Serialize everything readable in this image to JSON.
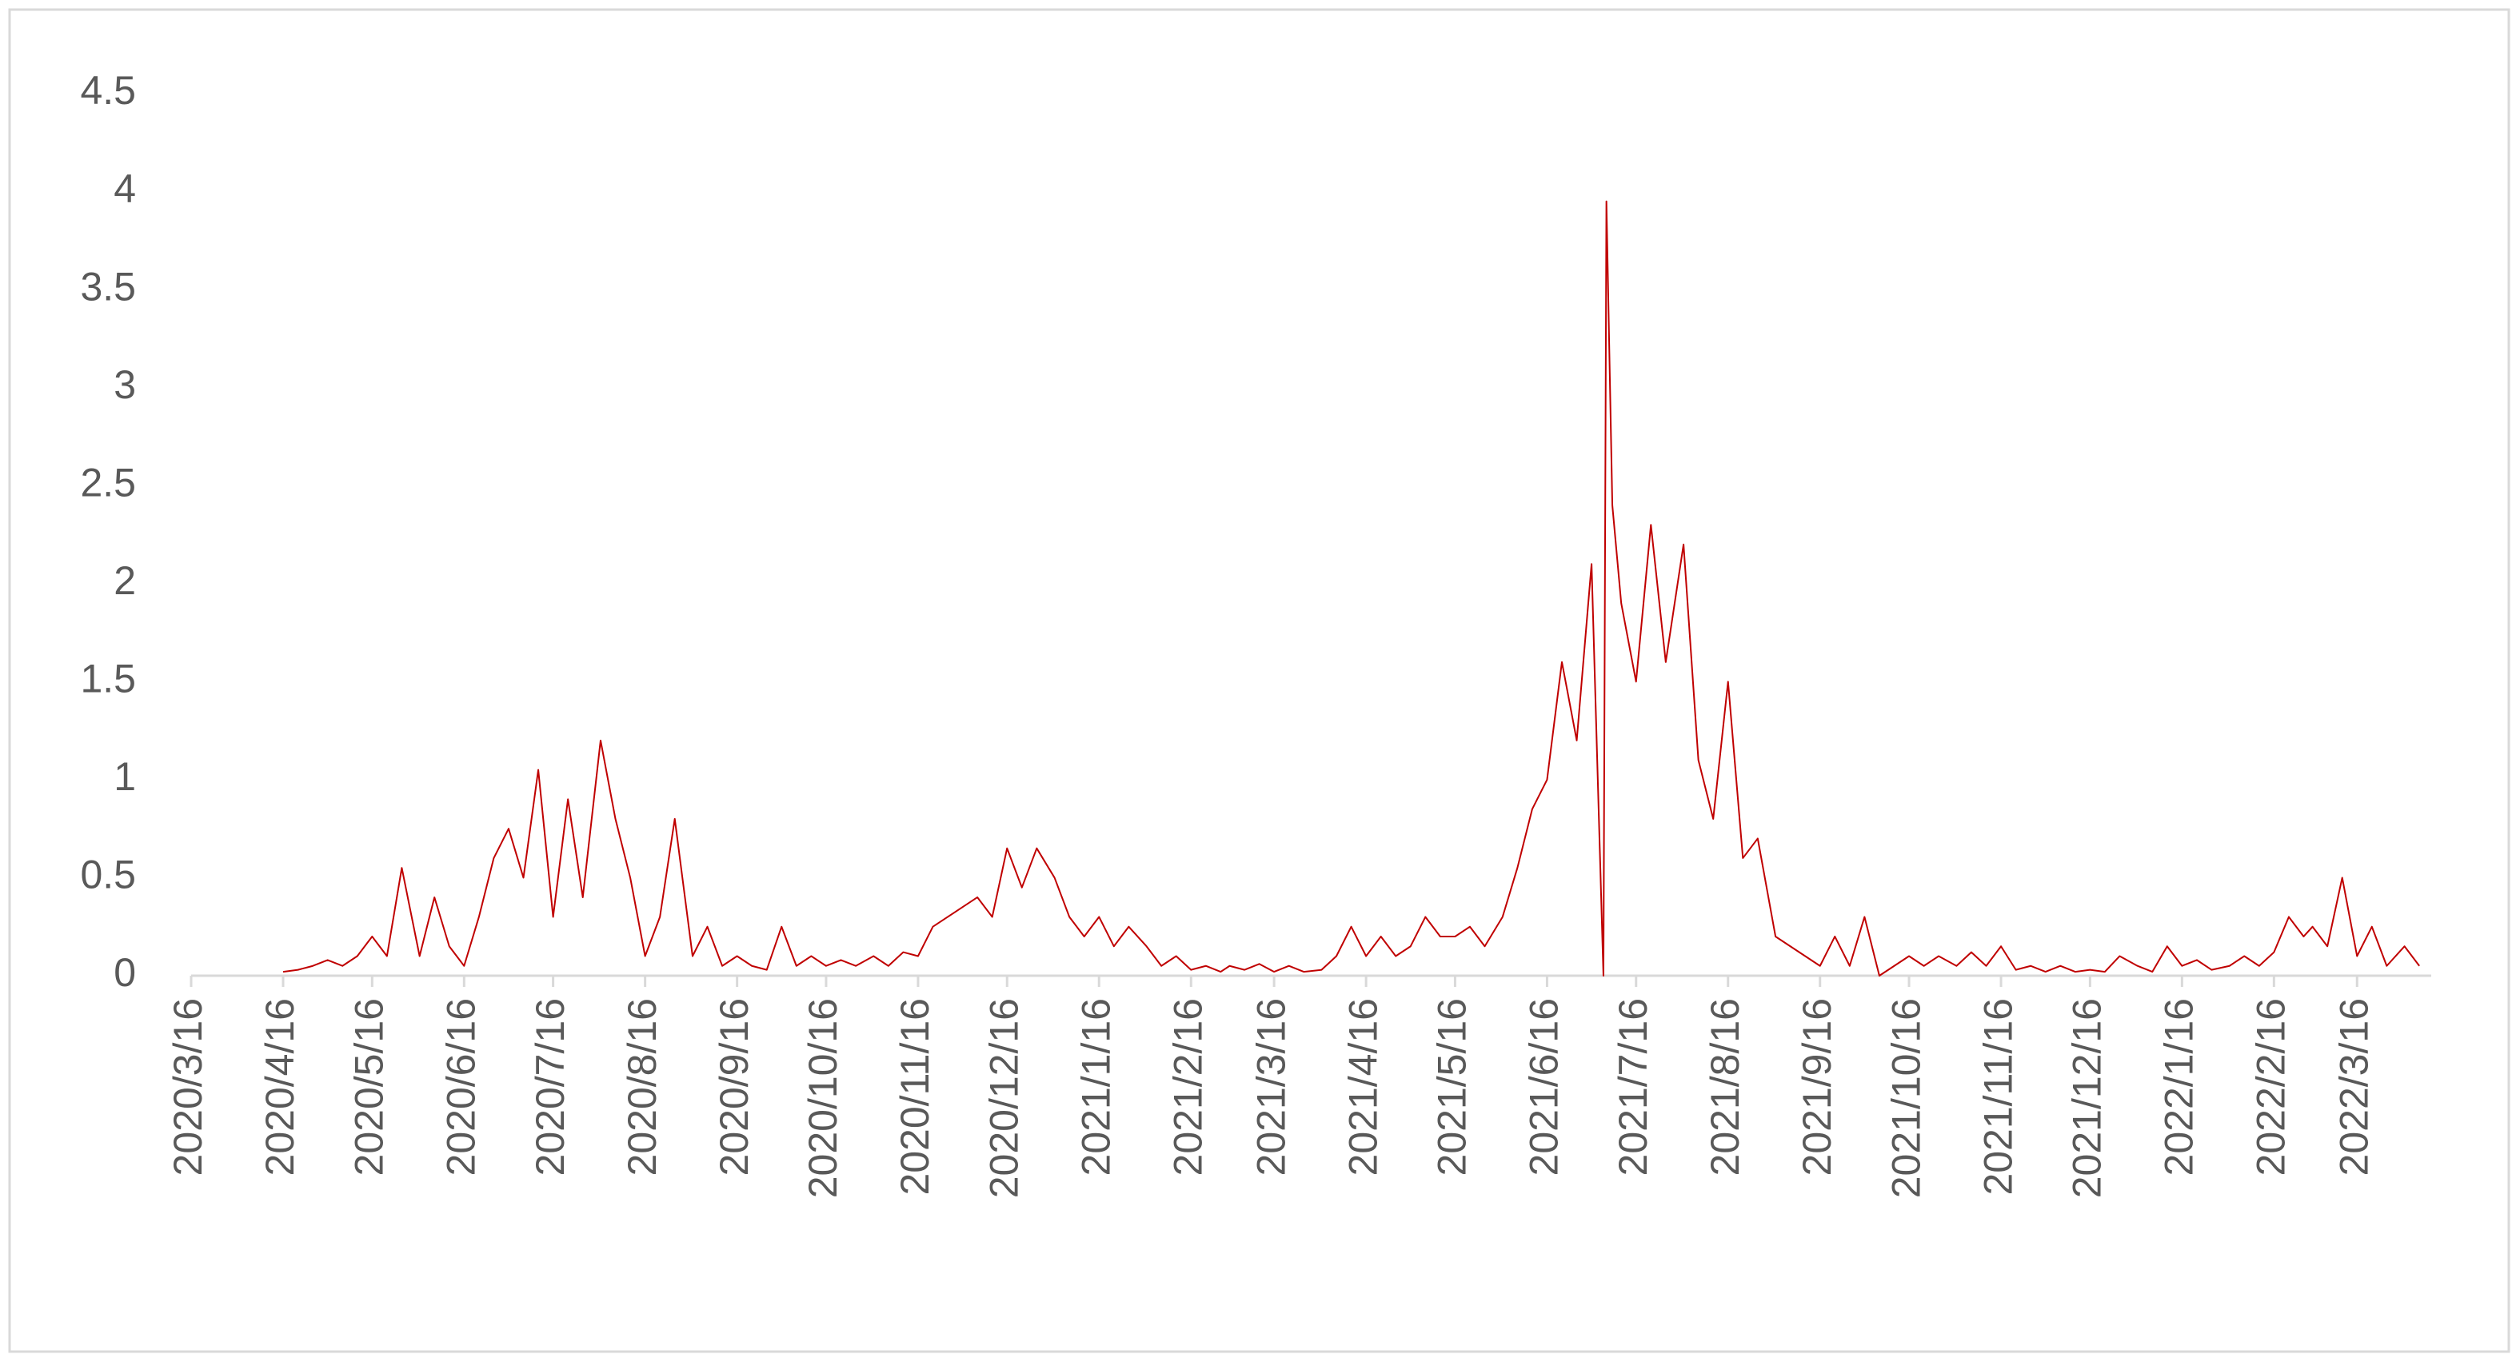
{
  "chart_data": {
    "type": "line",
    "color": "#c00000",
    "x": [
      "2020/4/16",
      "2020/4/21",
      "2020/4/26",
      "2020/5/1",
      "2020/5/6",
      "2020/5/11",
      "2020/5/16",
      "2020/5/21",
      "2020/5/26",
      "2020/6/1",
      "2020/6/6",
      "2020/6/11",
      "2020/6/16",
      "2020/6/21",
      "2020/6/26",
      "2020/7/1",
      "2020/7/6",
      "2020/7/11",
      "2020/7/16",
      "2020/7/21",
      "2020/7/26",
      "2020/8/1",
      "2020/8/6",
      "2020/8/11",
      "2020/8/16",
      "2020/8/21",
      "2020/8/26",
      "2020/9/1",
      "2020/9/6",
      "2020/9/11",
      "2020/9/16",
      "2020/9/21",
      "2020/9/26",
      "2020/10/1",
      "2020/10/6",
      "2020/10/11",
      "2020/10/16",
      "2020/10/21",
      "2020/10/26",
      "2020/11/1",
      "2020/11/6",
      "2020/11/11",
      "2020/11/16",
      "2020/11/21",
      "2020/11/26",
      "2020/12/1",
      "2020/12/6",
      "2020/12/11",
      "2020/12/16",
      "2020/12/21",
      "2020/12/26",
      "2021/1/1",
      "2021/1/6",
      "2021/1/11",
      "2021/1/16",
      "2021/1/21",
      "2021/1/26",
      "2021/2/1",
      "2021/2/6",
      "2021/2/11",
      "2021/2/16",
      "2021/2/21",
      "2021/2/26",
      "2021/3/1",
      "2021/3/6",
      "2021/3/11",
      "2021/3/16",
      "2021/3/21",
      "2021/3/26",
      "2021/4/1",
      "2021/4/6",
      "2021/4/11",
      "2021/4/16",
      "2021/4/21",
      "2021/4/26",
      "2021/5/1",
      "2021/5/6",
      "2021/5/11",
      "2021/5/16",
      "2021/5/21",
      "2021/5/26",
      "2021/6/1",
      "2021/6/6",
      "2021/6/11",
      "2021/6/16",
      "2021/6/21",
      "2021/6/26",
      "2021/7/1",
      "2021/7/5",
      "2021/7/6",
      "2021/7/8",
      "2021/7/11",
      "2021/7/16",
      "2021/7/21",
      "2021/7/26",
      "2021/8/1",
      "2021/8/6",
      "2021/8/11",
      "2021/8/16",
      "2021/8/21",
      "2021/8/26",
      "2021/9/1",
      "2021/9/6",
      "2021/9/11",
      "2021/9/16",
      "2021/9/21",
      "2021/9/26",
      "2021/10/1",
      "2021/10/6",
      "2021/10/11",
      "2021/10/16",
      "2021/10/21",
      "2021/10/26",
      "2021/11/1",
      "2021/11/6",
      "2021/11/11",
      "2021/11/16",
      "2021/11/21",
      "2021/11/26",
      "2021/12/1",
      "2021/12/6",
      "2021/12/11",
      "2021/12/16",
      "2021/12/21",
      "2021/12/26",
      "2022/1/1",
      "2022/1/6",
      "2022/1/11",
      "2022/1/16",
      "2022/1/21",
      "2022/1/26",
      "2022/2/1",
      "2022/2/6",
      "2022/2/11",
      "2022/2/16",
      "2022/2/21",
      "2022/2/26",
      "2022/3/1",
      "2022/3/6",
      "2022/3/11",
      "2022/3/16",
      "2022/3/21",
      "2022/3/26",
      "2022/4/1",
      "2022/4/6"
    ],
    "values": [
      0.02,
      0.03,
      0.05,
      0.08,
      0.05,
      0.1,
      0.2,
      0.1,
      0.55,
      0.1,
      0.4,
      0.15,
      0.05,
      0.3,
      0.6,
      0.75,
      0.5,
      1.05,
      0.3,
      0.9,
      0.4,
      1.2,
      0.8,
      0.5,
      0.1,
      0.3,
      0.8,
      0.1,
      0.25,
      0.05,
      0.1,
      0.05,
      0.03,
      0.25,
      0.05,
      0.1,
      0.05,
      0.08,
      0.05,
      0.1,
      0.05,
      0.12,
      0.1,
      0.25,
      0.3,
      0.35,
      0.4,
      0.3,
      0.65,
      0.45,
      0.65,
      0.5,
      0.3,
      0.2,
      0.3,
      0.15,
      0.25,
      0.15,
      0.05,
      0.1,
      0.03,
      0.05,
      0.02,
      0.05,
      0.03,
      0.06,
      0.02,
      0.05,
      0.02,
      0.03,
      0.1,
      0.25,
      0.1,
      0.2,
      0.1,
      0.15,
      0.3,
      0.2,
      0.2,
      0.25,
      0.15,
      0.3,
      0.55,
      0.85,
      1.0,
      1.6,
      1.2,
      2.1,
      0,
      3.95,
      2.4,
      1.9,
      1.5,
      2.3,
      1.6,
      2.2,
      1.1,
      0.8,
      1.5,
      0.6,
      0.7,
      0.2,
      0.15,
      0.1,
      0.05,
      0.2,
      0.05,
      0.3,
      0,
      0.05,
      0.1,
      0.05,
      0.1,
      0.05,
      0.12,
      0.05,
      0.15,
      0.03,
      0.05,
      0.02,
      0.05,
      0.02,
      0.03,
      0.02,
      0.1,
      0.05,
      0.02,
      0.15,
      0.05,
      0.08,
      0.03,
      0.05,
      0.1,
      0.05,
      0.12,
      0.3,
      0.2,
      0.25,
      0.15,
      0.5,
      0.1,
      0.25,
      0.05,
      0.15,
      0.05
    ],
    "xlim": [
      "2020/3/16",
      "2022/4/10"
    ],
    "xticks": [
      "2020/3/16",
      "2020/4/16",
      "2020/5/16",
      "2020/6/16",
      "2020/7/16",
      "2020/8/16",
      "2020/9/16",
      "2020/10/16",
      "2020/11/16",
      "2020/12/16",
      "2021/1/16",
      "2021/2/16",
      "2021/3/16",
      "2021/4/16",
      "2021/5/16",
      "2021/6/16",
      "2021/7/16",
      "2021/8/16",
      "2021/9/16",
      "2021/10/16",
      "2021/11/16",
      "2021/12/16",
      "2022/1/16",
      "2022/2/16",
      "2022/3/16"
    ],
    "ylim": [
      0,
      4.5
    ],
    "yticks": [
      0,
      0.5,
      1,
      1.5,
      2,
      2.5,
      3,
      3.5,
      4,
      4.5
    ],
    "grid": false
  }
}
